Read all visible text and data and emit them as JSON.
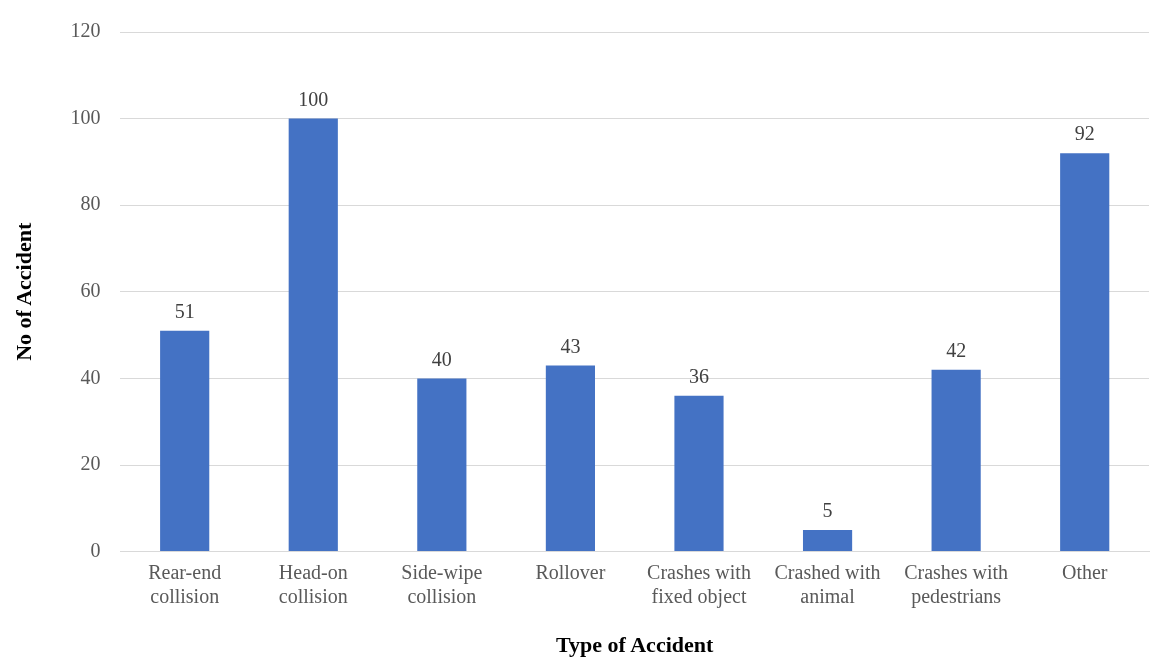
{
  "chart_data": {
    "type": "bar",
    "xlabel": "Type of Accident",
    "ylabel": "No of Accident",
    "categories": [
      "Rear-end collision",
      "Head-on collision",
      "Side-wipe collision",
      "Rollover",
      "Crashes with fixed object",
      "Crashed with animal",
      "Crashes with pedestrians",
      "Other"
    ],
    "values": [
      51,
      100,
      40,
      43,
      36,
      5,
      42,
      92
    ],
    "color": "#4472c4",
    "ylim": [
      0,
      120
    ],
    "yticks": [
      0,
      20,
      40,
      60,
      80,
      100,
      120
    ],
    "grid": "y",
    "data_labels": true
  }
}
